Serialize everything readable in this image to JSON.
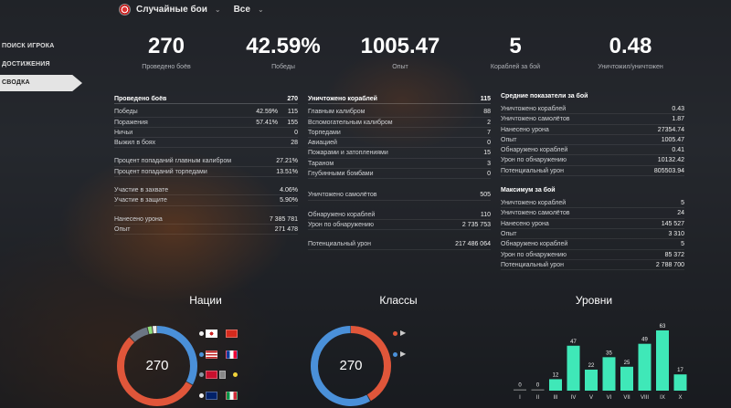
{
  "topbar": {
    "mode": "Случайные бои",
    "filter": "Все"
  },
  "sidebar": {
    "items": [
      {
        "label": "ПОИСК ИГРОКА"
      },
      {
        "label": "ДОСТИЖЕНИЯ"
      },
      {
        "label": "СВОДКА"
      }
    ]
  },
  "headline": [
    {
      "value": "270",
      "label": "Проведено боёв"
    },
    {
      "value": "42.59%",
      "label": "Победы"
    },
    {
      "value": "1005.47",
      "label": "Опыт"
    },
    {
      "value": "5",
      "label": "Кораблей за бой"
    },
    {
      "value": "0.48",
      "label": "Уничтожил/уничтожен"
    }
  ],
  "battles": {
    "title": "Проведено боёв",
    "total": "270",
    "rows1": [
      {
        "label": "Победы",
        "pct": "42.59%",
        "value": "115"
      },
      {
        "label": "Поражения",
        "pct": "57.41%",
        "value": "155"
      },
      {
        "label": "Ничьи",
        "pct": "",
        "value": "0"
      },
      {
        "label": "Выжил в боях",
        "pct": "",
        "value": "28"
      }
    ],
    "rows2": [
      {
        "label": "Процент попаданий главным калибром",
        "value": "27.21%"
      },
      {
        "label": "Процент попаданий торпедами",
        "value": "13.51%"
      }
    ],
    "rows3": [
      {
        "label": "Участие в захвате",
        "value": "4.06%"
      },
      {
        "label": "Участие в защите",
        "value": "5.90%"
      }
    ],
    "rows4": [
      {
        "label": "Нанесено урона",
        "value": "7 385 781"
      },
      {
        "label": "Опыт",
        "value": "271 478"
      }
    ]
  },
  "destroyed": {
    "title": "Уничтожено кораблей",
    "total": "115",
    "rows1": [
      {
        "label": "Главным калибром",
        "value": "88"
      },
      {
        "label": "Вспомогательным калибром",
        "value": "2"
      },
      {
        "label": "Торпедами",
        "value": "7"
      },
      {
        "label": "Авиацией",
        "value": "0"
      },
      {
        "label": "Пожарами и затоплениями",
        "value": "15"
      },
      {
        "label": "Тараном",
        "value": "3"
      },
      {
        "label": "Глубинными бомбами",
        "value": "0"
      }
    ],
    "rows2": [
      {
        "label": "Уничтожено самолётов",
        "value": "505"
      }
    ],
    "rows3": [
      {
        "label": "Обнаружено кораблей",
        "value": "110"
      },
      {
        "label": "Урон по обнаружению",
        "value": "2 735 753"
      }
    ],
    "rows4": [
      {
        "label": "Потенциальный урон",
        "value": "217 486 064"
      }
    ]
  },
  "average": {
    "title": "Средние показатели за бой",
    "rows": [
      {
        "label": "Уничтожено кораблей",
        "value": "0.43"
      },
      {
        "label": "Уничтожено самолётов",
        "value": "1.87"
      },
      {
        "label": "Нанесено урона",
        "value": "27354.74"
      },
      {
        "label": "Опыт",
        "value": "1005.47"
      },
      {
        "label": "Обнаружено кораблей",
        "value": "0.41"
      },
      {
        "label": "Урон по обнаружению",
        "value": "10132.42"
      },
      {
        "label": "Потенциальный урон",
        "value": "805503.94"
      }
    ]
  },
  "maximum": {
    "title": "Максимум за бой",
    "rows": [
      {
        "label": "Уничтожено кораблей",
        "value": "5"
      },
      {
        "label": "Уничтожено самолётов",
        "value": "24"
      },
      {
        "label": "Нанесено урона",
        "value": "145 527"
      },
      {
        "label": "Опыт",
        "value": "3 310"
      },
      {
        "label": "Обнаружено кораблей",
        "value": "5"
      },
      {
        "label": "Урон по обнаружению",
        "value": "85 372"
      },
      {
        "label": "Потенциальный урон",
        "value": "2 788 700"
      }
    ]
  },
  "charts": {
    "nations_title": "Нации",
    "classes_title": "Классы",
    "tiers_title": "Уровни",
    "center_value": "270"
  },
  "colors": {
    "blue": "#4a90d9",
    "red": "#e0563a",
    "gray": "#6b7684",
    "green": "#3fe0b0",
    "bar": "#3fe8b8"
  },
  "chart_data": [
    {
      "type": "pie",
      "title": "Нации",
      "center_label": "270",
      "slices": [
        {
          "color": "#4a90d9",
          "share": 0.33
        },
        {
          "color": "#e0563a",
          "share": 0.55
        },
        {
          "color": "#6b7684",
          "share": 0.08
        },
        {
          "color": "#8fe07a",
          "share": 0.02
        },
        {
          "color": "#eeeeee",
          "share": 0.02
        }
      ]
    },
    {
      "type": "pie",
      "title": "Классы",
      "center_label": "270",
      "slices": [
        {
          "color": "#e0563a",
          "share": 0.42
        },
        {
          "color": "#4a90d9",
          "share": 0.58
        }
      ]
    },
    {
      "type": "bar",
      "title": "Уровни",
      "categories": [
        "I",
        "II",
        "III",
        "IV",
        "V",
        "VI",
        "VII",
        "VIII",
        "IX",
        "X"
      ],
      "values": [
        0,
        0,
        12,
        47,
        22,
        35,
        25,
        49,
        63,
        17
      ],
      "ylim": [
        0,
        63
      ]
    }
  ]
}
